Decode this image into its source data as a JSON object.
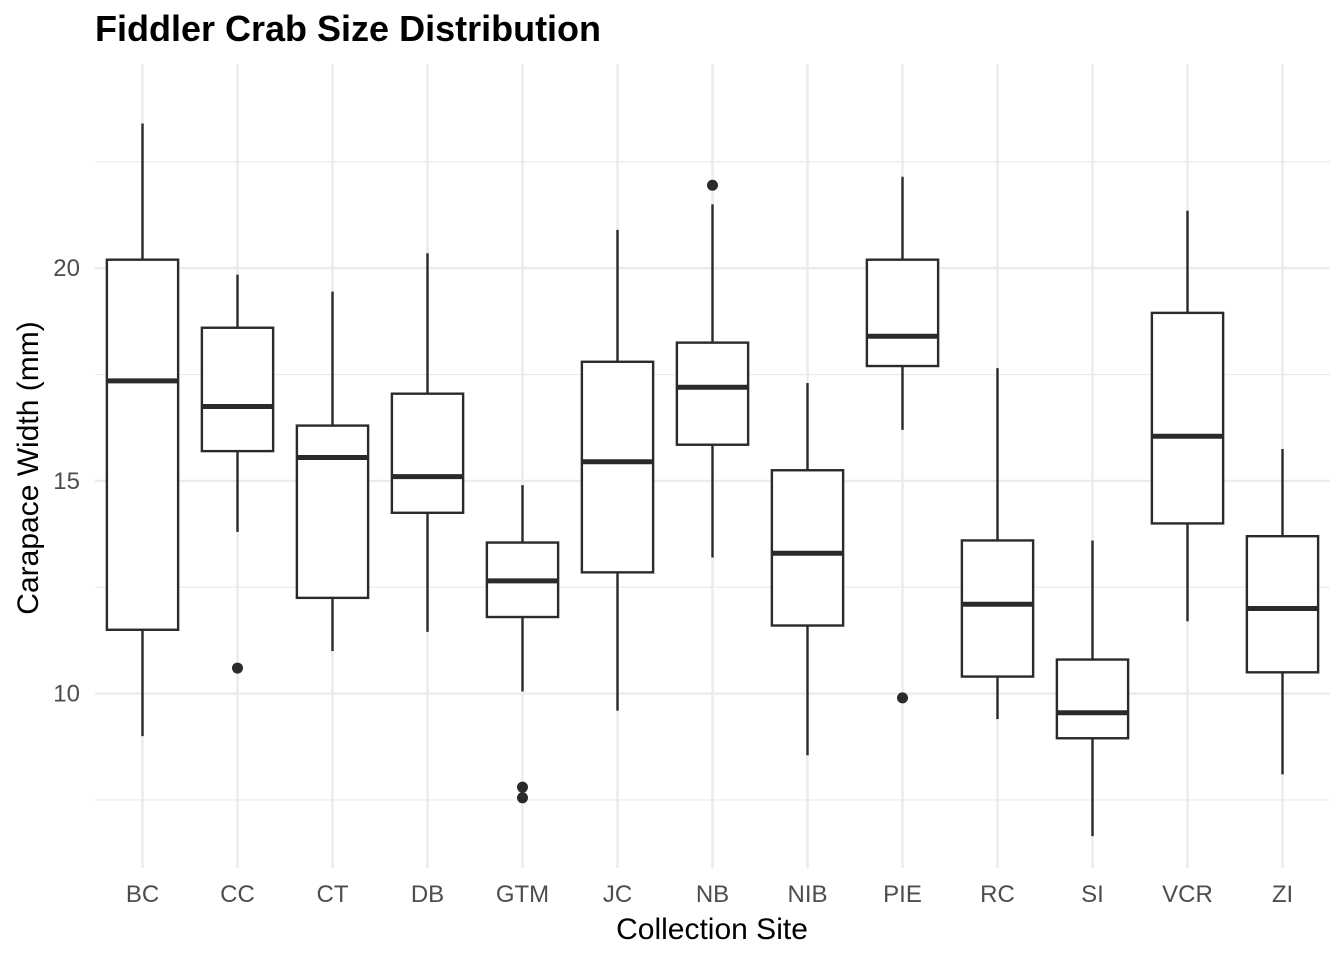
{
  "chart_data": {
    "type": "boxplot",
    "title": "Fiddler Crab Size Distribution",
    "xlabel": "Collection Site",
    "ylabel": "Carapace Width (mm)",
    "ylim": [
      5.9,
      24.8
    ],
    "yticks": [
      10,
      15,
      20
    ],
    "grid": true,
    "categories": [
      "BC",
      "CC",
      "CT",
      "DB",
      "GTM",
      "JC",
      "NB",
      "NIB",
      "PIE",
      "RC",
      "SI",
      "VCR",
      "ZI"
    ],
    "boxes": [
      {
        "site": "BC",
        "whisker_low": 9.0,
        "q1": 11.5,
        "median": 17.35,
        "q3": 20.2,
        "whisker_high": 23.4,
        "outliers": []
      },
      {
        "site": "CC",
        "whisker_low": 13.8,
        "q1": 15.7,
        "median": 16.75,
        "q3": 18.6,
        "whisker_high": 19.85,
        "outliers": [
          10.6
        ]
      },
      {
        "site": "CT",
        "whisker_low": 11.0,
        "q1": 12.25,
        "median": 15.55,
        "q3": 16.3,
        "whisker_high": 19.45,
        "outliers": []
      },
      {
        "site": "DB",
        "whisker_low": 11.45,
        "q1": 14.25,
        "median": 15.1,
        "q3": 17.05,
        "whisker_high": 20.35,
        "outliers": []
      },
      {
        "site": "GTM",
        "whisker_low": 10.05,
        "q1": 11.8,
        "median": 12.65,
        "q3": 13.55,
        "whisker_high": 14.9,
        "outliers": [
          7.8,
          7.55
        ]
      },
      {
        "site": "JC",
        "whisker_low": 9.6,
        "q1": 12.85,
        "median": 15.45,
        "q3": 17.8,
        "whisker_high": 20.9,
        "outliers": []
      },
      {
        "site": "NB",
        "whisker_low": 13.2,
        "q1": 15.85,
        "median": 17.2,
        "q3": 18.25,
        "whisker_high": 21.5,
        "outliers": [
          21.95
        ]
      },
      {
        "site": "NIB",
        "whisker_low": 8.55,
        "q1": 11.6,
        "median": 13.3,
        "q3": 15.25,
        "whisker_high": 17.3,
        "outliers": []
      },
      {
        "site": "PIE",
        "whisker_low": 16.2,
        "q1": 17.7,
        "median": 18.4,
        "q3": 20.2,
        "whisker_high": 22.15,
        "outliers": [
          9.9
        ]
      },
      {
        "site": "RC",
        "whisker_low": 9.4,
        "q1": 10.4,
        "median": 12.1,
        "q3": 13.6,
        "whisker_high": 17.65,
        "outliers": []
      },
      {
        "site": "SI",
        "whisker_low": 6.65,
        "q1": 8.95,
        "median": 9.55,
        "q3": 10.8,
        "whisker_high": 13.6,
        "outliers": []
      },
      {
        "site": "VCR",
        "whisker_low": 11.7,
        "q1": 14.0,
        "median": 16.05,
        "q3": 18.95,
        "whisker_high": 21.35,
        "outliers": []
      },
      {
        "site": "ZI",
        "whisker_low": 8.1,
        "q1": 10.5,
        "median": 12.0,
        "q3": 13.7,
        "whisker_high": 15.75,
        "outliers": []
      }
    ],
    "colors": {
      "box_line": "#2a2a2a",
      "grid": "#ebebeb",
      "background": "#ffffff"
    }
  }
}
